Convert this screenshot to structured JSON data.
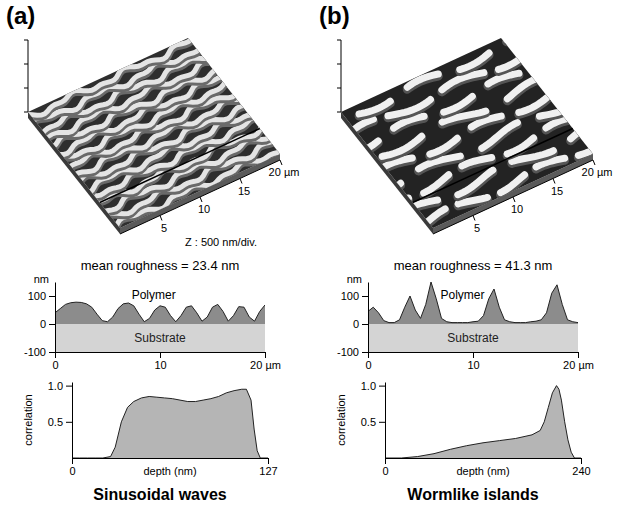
{
  "figure": {
    "panels": [
      {
        "letter": "(a)",
        "caption": "Sinusoidal waves",
        "surface": {
          "xlim": [
            0,
            20
          ],
          "ticks": [
            5,
            10,
            15,
            {
              "value": 20,
              "label": "20 µm"
            }
          ],
          "z_label": "Z : 500 nm/div."
        }
      },
      {
        "letter": "(b)",
        "caption": "Wormlike islands",
        "surface": {
          "xlim": [
            0,
            20
          ],
          "ticks": [
            5,
            10,
            15,
            {
              "value": 20,
              "label": "20 µm"
            }
          ]
        }
      }
    ]
  },
  "chart_data": [
    {
      "type": "area",
      "title": "mean roughness = 23.4 nm",
      "y_label": "nm",
      "annotations": [
        "Polymer",
        "Substrate"
      ],
      "x": [
        0,
        0.5,
        1,
        1.5,
        2,
        2.5,
        3,
        3.5,
        4,
        4.5,
        5,
        5.5,
        6,
        6.5,
        7,
        7.5,
        8,
        8.5,
        9,
        9.5,
        10,
        10.5,
        11,
        11.5,
        12,
        12.5,
        13,
        13.5,
        14,
        14.5,
        15,
        15.5,
        16,
        16.5,
        17,
        17.5,
        18,
        18.5,
        19,
        19.5,
        20
      ],
      "values": [
        40,
        55,
        70,
        76,
        78,
        77,
        72,
        60,
        35,
        12,
        8,
        25,
        55,
        72,
        75,
        65,
        35,
        8,
        20,
        50,
        65,
        60,
        30,
        8,
        30,
        60,
        65,
        40,
        10,
        25,
        60,
        70,
        45,
        10,
        30,
        62,
        60,
        25,
        10,
        45,
        68
      ],
      "xlim": [
        0,
        20
      ],
      "xticks": [
        0,
        10,
        {
          "value": 20,
          "label": "20 µm"
        }
      ],
      "ylim": [
        -100,
        150
      ],
      "yticks": [
        -100,
        0,
        100
      ]
    },
    {
      "type": "area",
      "x_label": "depth (nm)",
      "y_label": "correlation",
      "x": [
        0,
        5,
        10,
        15,
        20,
        25,
        28,
        32,
        36,
        40,
        45,
        50,
        55,
        60,
        65,
        70,
        75,
        80,
        85,
        90,
        95,
        100,
        105,
        110,
        113,
        116,
        118,
        120,
        122,
        127
      ],
      "values": [
        0,
        0,
        0,
        0,
        0,
        0.02,
        0.15,
        0.5,
        0.7,
        0.78,
        0.83,
        0.85,
        0.84,
        0.83,
        0.82,
        0.8,
        0.78,
        0.78,
        0.8,
        0.82,
        0.85,
        0.9,
        0.93,
        0.95,
        0.95,
        0.8,
        0.4,
        0.1,
        0,
        0
      ],
      "xlim": [
        0,
        127
      ],
      "xticks": [
        0,
        127
      ],
      "ylim": [
        0,
        1.05
      ],
      "yticks": [
        0.5,
        {
          "value": 1,
          "label": "1.0"
        }
      ]
    },
    {
      "type": "area",
      "title": "mean roughness = 41.3 nm",
      "y_label": "nm",
      "annotations": [
        "Polymer",
        "Substrate"
      ],
      "x": [
        0,
        0.5,
        1,
        1.5,
        2,
        2.5,
        3,
        3.5,
        4,
        4.5,
        5,
        5.5,
        6,
        6.5,
        7,
        7.5,
        8,
        8.5,
        9,
        9.5,
        10,
        10.5,
        11,
        11.5,
        12,
        12.5,
        13,
        13.5,
        14,
        14.5,
        15,
        15.5,
        16,
        16.5,
        17,
        17.5,
        18,
        18.5,
        19,
        19.5,
        20
      ],
      "values": [
        45,
        60,
        40,
        12,
        5,
        5,
        15,
        60,
        100,
        50,
        20,
        70,
        150,
        90,
        20,
        8,
        5,
        5,
        5,
        5,
        8,
        10,
        30,
        90,
        125,
        60,
        15,
        8,
        5,
        5,
        5,
        8,
        10,
        15,
        40,
        110,
        140,
        70,
        15,
        8,
        5
      ],
      "xlim": [
        0,
        20
      ],
      "xticks": [
        0,
        10,
        {
          "value": 20,
          "label": "20 µm"
        }
      ],
      "ylim": [
        -100,
        150
      ],
      "yticks": [
        -100,
        0,
        100
      ]
    },
    {
      "type": "area",
      "x_label": "depth (nm)",
      "y_label": "correlation",
      "x": [
        0,
        20,
        40,
        60,
        80,
        100,
        120,
        140,
        160,
        180,
        190,
        195,
        200,
        205,
        210,
        213,
        216,
        220,
        224,
        228,
        232,
        240
      ],
      "values": [
        0,
        0,
        0.02,
        0.06,
        0.12,
        0.17,
        0.21,
        0.24,
        0.27,
        0.32,
        0.38,
        0.5,
        0.7,
        0.9,
        1.0,
        0.95,
        0.8,
        0.5,
        0.25,
        0.08,
        0,
        0
      ],
      "xlim": [
        0,
        240
      ],
      "xticks": [
        0,
        240
      ],
      "ylim": [
        0,
        1.05
      ],
      "yticks": [
        0.5,
        {
          "value": 1,
          "label": "1.0"
        }
      ]
    }
  ]
}
